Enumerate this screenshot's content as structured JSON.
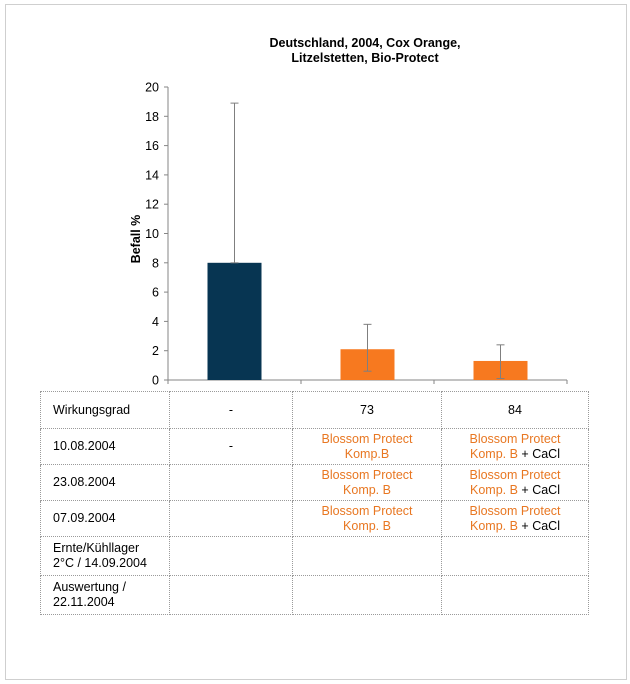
{
  "chart_data": {
    "type": "bar",
    "title_lines": [
      "Deutschland, 2004, Cox Orange,",
      "Litzelstetten, Bio-Protect"
    ],
    "ylabel": "Befall %",
    "xlabel": "",
    "ylim": [
      0,
      20
    ],
    "yticks": [
      "0",
      "2",
      "4",
      "6",
      "8",
      "10",
      "12",
      "14",
      "16",
      "18",
      "20"
    ],
    "categories": [
      "",
      "",
      ""
    ],
    "values": [
      8,
      2.1,
      1.3
    ],
    "error_high": [
      18.9,
      3.8,
      2.4
    ],
    "error_low": [
      8,
      0.6,
      0.1
    ],
    "bar_colors": [
      "#073552",
      "#f7791f",
      "#f7791f"
    ],
    "grid": false
  },
  "table": {
    "rows": [
      {
        "label": "Wirkungsgrad",
        "cells": [
          {
            "parts": [
              {
                "text": "-",
                "color": "black"
              }
            ]
          },
          {
            "parts": [
              {
                "text": "73",
                "color": "black"
              }
            ]
          },
          {
            "parts": [
              {
                "text": "84",
                "color": "black"
              }
            ]
          }
        ]
      },
      {
        "label": "10.08.2004",
        "cells": [
          {
            "parts": [
              {
                "text": "-",
                "color": "black"
              }
            ]
          },
          {
            "parts": [
              {
                "text": "Blossom Protect\nKomp.B",
                "color": "orange"
              }
            ]
          },
          {
            "parts": [
              {
                "text": "Blossom Protect\nKomp. B",
                "color": "orange"
              },
              {
                "text": " + CaCl",
                "color": "black"
              }
            ]
          }
        ]
      },
      {
        "label": "23.08.2004",
        "cells": [
          {
            "parts": []
          },
          {
            "parts": [
              {
                "text": "Blossom Protect\nKomp. B",
                "color": "orange"
              }
            ]
          },
          {
            "parts": [
              {
                "text": "Blossom Protect\nKomp. B",
                "color": "orange"
              },
              {
                "text": " + CaCl",
                "color": "black"
              }
            ]
          }
        ]
      },
      {
        "label": "07.09.2004",
        "cells": [
          {
            "parts": []
          },
          {
            "parts": [
              {
                "text": "Blossom  Protect\nKomp. B",
                "color": "orange"
              }
            ]
          },
          {
            "parts": [
              {
                "text": "Blossom Protect\nKomp. B",
                "color": "orange"
              },
              {
                "text": " + CaCl",
                "color": "black"
              }
            ]
          }
        ]
      },
      {
        "label": "Ernte/Kühllager\n2°C / 14.09.2004",
        "cells": [
          {
            "parts": []
          },
          {
            "parts": []
          },
          {
            "parts": []
          }
        ]
      },
      {
        "label": "Auswertung /\n22.11.2004",
        "cells": [
          {
            "parts": []
          },
          {
            "parts": []
          },
          {
            "parts": []
          }
        ]
      }
    ]
  }
}
